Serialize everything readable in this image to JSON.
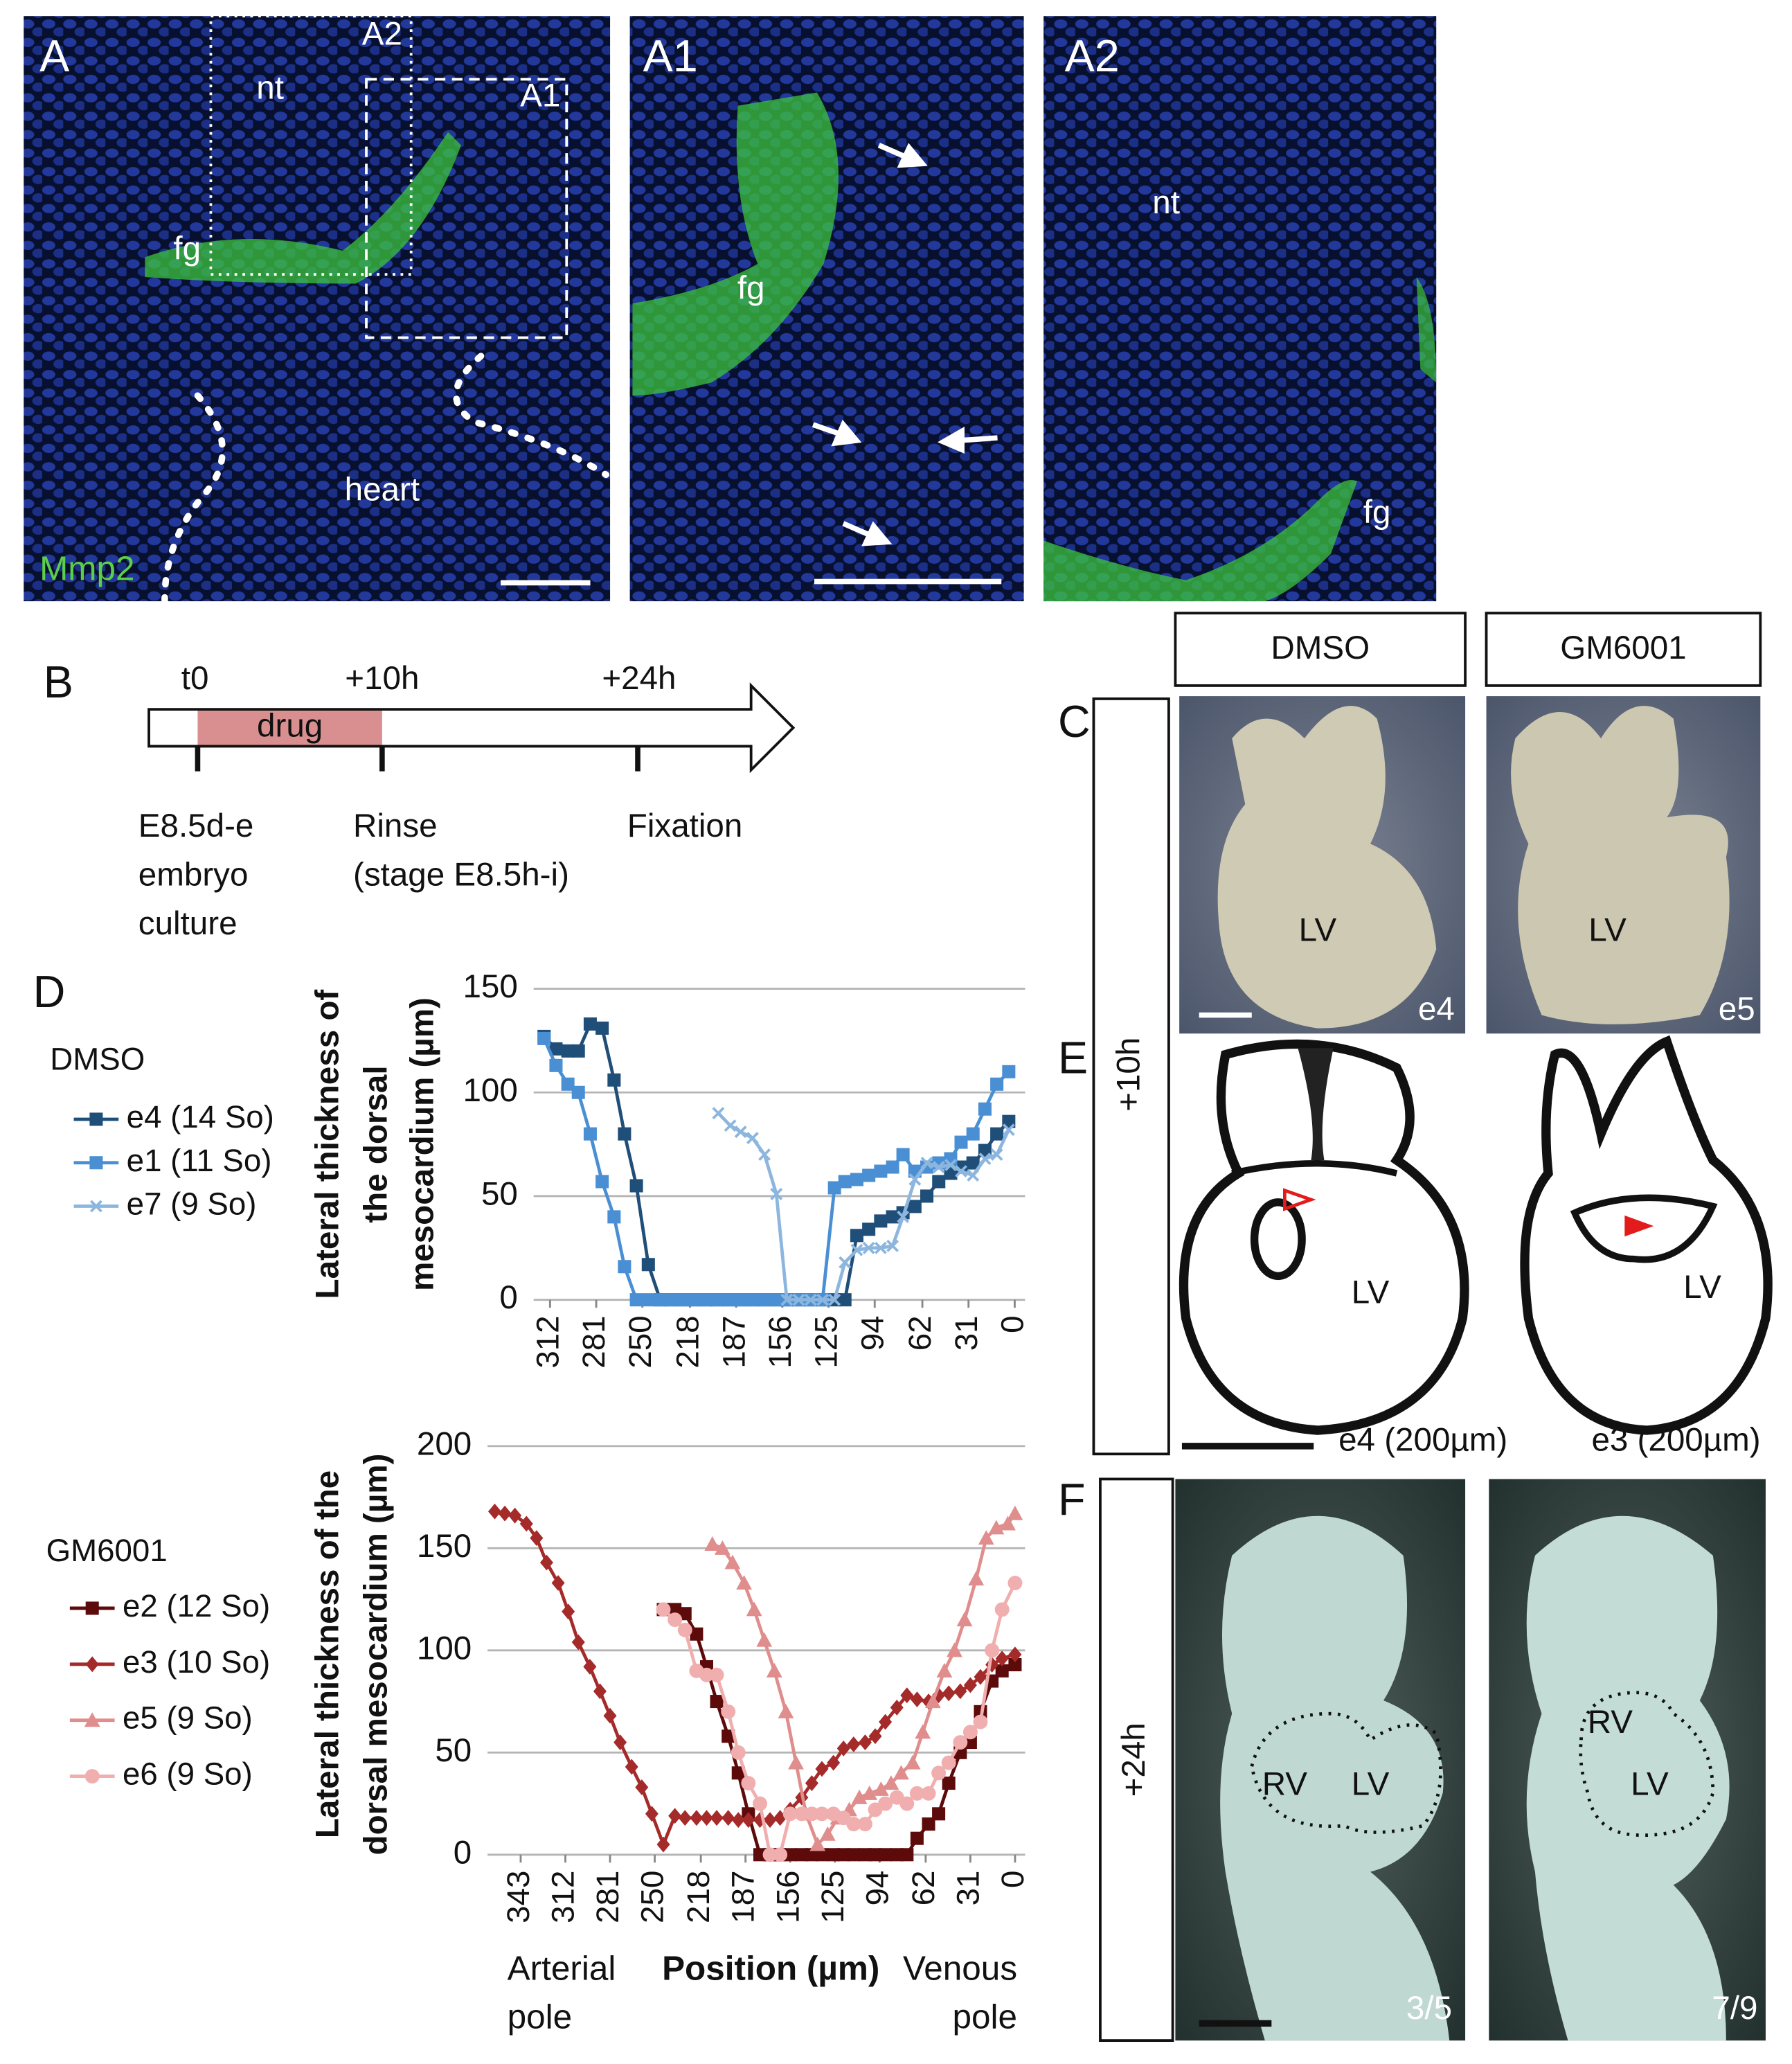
{
  "panel_a": {
    "label": "A",
    "marks": [
      "nt",
      "fg",
      "heart"
    ],
    "inset_labels": [
      "A2",
      "A1"
    ],
    "stain": "Mmp2"
  },
  "panel_a1": {
    "label": "A1",
    "marks": [
      "fg"
    ]
  },
  "panel_a2": {
    "label": "A2",
    "marks": [
      "nt",
      "fg"
    ]
  },
  "panel_b": {
    "label": "B",
    "times": [
      "t0",
      "+10h",
      "+24h"
    ],
    "drug": "drug",
    "steps": [
      [
        "E8.5d-e",
        "embryo",
        "culture"
      ],
      [
        "Rinse",
        "(stage E8.5h-i)"
      ],
      [
        "Fixation"
      ]
    ]
  },
  "panel_c": {
    "label": "C",
    "columns": [
      "DMSO",
      "GM6001"
    ],
    "row": "+10h",
    "image_labels": [
      "LV",
      "LV"
    ],
    "embryos": [
      "e4",
      "e5"
    ]
  },
  "panel_d": {
    "label": "D"
  },
  "panel_e": {
    "label": "E",
    "image_labels": [
      "LV",
      "LV"
    ],
    "captions": [
      "e4 (200µm)",
      "e3 (200µm)"
    ]
  },
  "panel_f": {
    "label": "F",
    "row": "+24h",
    "image_labels": [
      [
        "RV",
        "LV"
      ],
      [
        "RV",
        "LV"
      ]
    ],
    "counts": [
      "3/5",
      "7/9"
    ]
  },
  "chart_data": [
    {
      "type": "line",
      "legend_title": "DMSO",
      "y_label_lines": [
        "Lateral thickness of",
        "the dorsal",
        "mesocardium (µm)"
      ],
      "xlim": [
        323,
        -7
      ],
      "xticks": [
        312,
        281,
        250,
        218,
        187,
        156,
        125,
        94,
        62,
        31,
        0
      ],
      "ylim": [
        0,
        150
      ],
      "yticks": [
        0,
        50,
        100,
        150
      ],
      "grid": true,
      "series": [
        {
          "name": "e4 (14 So)",
          "color": "#1f4e79",
          "marker": "square",
          "x": [
            316,
            308,
            300,
            293,
            285,
            277,
            269,
            262,
            254,
            246,
            238,
            231,
            223,
            215,
            207,
            200,
            192,
            184,
            176,
            168,
            160,
            153,
            145,
            137,
            129,
            121,
            114,
            106,
            98,
            90,
            82,
            75,
            67,
            59,
            51,
            43,
            36,
            28,
            20,
            12,
            4
          ],
          "values": [
            127,
            121,
            120,
            120,
            133,
            131,
            106,
            80,
            55,
            17,
            0,
            0,
            0,
            0,
            0,
            0,
            0,
            0,
            0,
            0,
            0,
            0,
            0,
            0,
            0,
            0,
            0,
            31,
            34,
            38,
            40,
            42,
            45,
            50,
            57,
            61,
            64,
            66,
            72,
            80,
            86
          ]
        },
        {
          "name": "e1 (11 So)",
          "color": "#4a8fd4",
          "marker": "square",
          "x": [
            316,
            308,
            300,
            293,
            285,
            277,
            269,
            262,
            254,
            246,
            238,
            231,
            223,
            215,
            207,
            200,
            192,
            184,
            176,
            168,
            160,
            153,
            145,
            137,
            129,
            121,
            114,
            106,
            98,
            90,
            82,
            75,
            67,
            59,
            51,
            43,
            36,
            28,
            20,
            12,
            4
          ],
          "values": [
            126,
            113,
            104,
            100,
            80,
            57,
            40,
            16,
            0,
            0,
            0,
            0,
            0,
            0,
            0,
            0,
            0,
            0,
            0,
            0,
            0,
            0,
            0,
            0,
            0,
            54,
            57,
            58,
            60,
            62,
            64,
            70,
            62,
            64,
            66,
            68,
            76,
            80,
            92,
            104,
            110
          ]
        },
        {
          "name": "e7 (9 So)",
          "color": "#8db6df",
          "marker": "cross",
          "x": [
            199,
            191,
            184,
            176,
            168,
            160,
            153,
            145,
            137,
            129,
            121,
            114,
            106,
            98,
            90,
            82,
            75,
            67,
            59,
            51,
            43,
            36,
            28,
            20,
            12,
            4
          ],
          "values": [
            90,
            84,
            81,
            78,
            70,
            51,
            0,
            0,
            0,
            0,
            0,
            18,
            24,
            25,
            25,
            26,
            40,
            58,
            66,
            64,
            65,
            62,
            60,
            68,
            70,
            82
          ]
        }
      ]
    },
    {
      "type": "line",
      "legend_title": "GM6001",
      "y_label_lines": [
        "Lateral thickness of the",
        "dorsal mesocardium (µm)"
      ],
      "x_label": "Position (µm)",
      "x_annotations": [
        [
          "Arterial",
          "pole"
        ],
        [
          "Venous",
          "pole"
        ]
      ],
      "xlim": [
        366,
        -7
      ],
      "xticks": [
        343,
        312,
        281,
        250,
        218,
        187,
        156,
        125,
        94,
        62,
        31,
        0
      ],
      "ylim": [
        0,
        200
      ],
      "yticks": [
        0,
        50,
        100,
        150,
        200
      ],
      "grid": true,
      "series": [
        {
          "name": "e2 (12 So)",
          "color": "#5c0a0a",
          "marker": "square",
          "x": [
            244,
            236,
            229,
            221,
            214,
            207,
            199,
            192,
            185,
            177,
            170,
            163,
            156,
            148,
            141,
            134,
            126,
            119,
            112,
            104,
            97,
            90,
            82,
            75,
            68,
            60,
            53,
            46,
            38,
            31,
            24,
            16,
            9,
            0
          ],
          "values": [
            120,
            120,
            118,
            108,
            92,
            75,
            58,
            40,
            20,
            0,
            0,
            0,
            0,
            0,
            0,
            0,
            0,
            0,
            0,
            0,
            0,
            0,
            0,
            0,
            8,
            15,
            20,
            35,
            50,
            55,
            70,
            85,
            90,
            93
          ]
        },
        {
          "name": "e3 (10 So)",
          "color": "#a52a2a",
          "marker": "diamond",
          "x": [
            361,
            354,
            347,
            339,
            332,
            325,
            317,
            310,
            303,
            295,
            288,
            281,
            274,
            266,
            259,
            252,
            244,
            236,
            229,
            221,
            214,
            207,
            199,
            192,
            185,
            177,
            170,
            163,
            156,
            148,
            141,
            134,
            126,
            119,
            112,
            104,
            97,
            90,
            82,
            75,
            68,
            60,
            53,
            46,
            38,
            31,
            24,
            16,
            9,
            0
          ],
          "values": [
            168,
            167,
            166,
            162,
            155,
            143,
            133,
            119,
            104,
            92,
            80,
            68,
            55,
            43,
            33,
            20,
            5,
            19,
            18,
            18,
            18,
            18,
            18,
            17,
            17,
            17,
            17,
            18,
            22,
            28,
            35,
            42,
            45,
            52,
            54,
            55,
            58,
            65,
            72,
            78,
            76,
            75,
            78,
            79,
            80,
            83,
            87,
            93,
            96,
            98
          ]
        },
        {
          "name": "e5 (9 So)",
          "color": "#e08d8d",
          "marker": "triangle",
          "x": [
            210,
            203,
            196,
            188,
            181,
            174,
            167,
            159,
            152,
            145,
            137,
            130,
            123,
            115,
            108,
            101,
            93,
            86,
            79,
            71,
            64,
            57,
            49,
            42,
            35,
            27,
            20,
            13,
            5,
            0
          ],
          "values": [
            152,
            150,
            143,
            133,
            120,
            105,
            90,
            70,
            45,
            20,
            5,
            10,
            18,
            22,
            28,
            30,
            32,
            35,
            40,
            45,
            60,
            75,
            90,
            100,
            115,
            135,
            155,
            160,
            162,
            167
          ]
        },
        {
          "name": "e6 (9 So)",
          "color": "#f0aeae",
          "marker": "circle",
          "x": [
            244,
            236,
            229,
            221,
            214,
            207,
            199,
            192,
            185,
            177,
            170,
            163,
            156,
            148,
            141,
            134,
            126,
            119,
            112,
            104,
            97,
            90,
            82,
            75,
            68,
            60,
            53,
            46,
            38,
            31,
            24,
            16,
            9,
            0
          ],
          "values": [
            120,
            115,
            110,
            90,
            88,
            88,
            70,
            50,
            35,
            25,
            0,
            0,
            20,
            20,
            20,
            20,
            20,
            18,
            15,
            15,
            22,
            25,
            28,
            25,
            30,
            30,
            40,
            45,
            55,
            60,
            65,
            100,
            120,
            133
          ]
        }
      ]
    }
  ]
}
